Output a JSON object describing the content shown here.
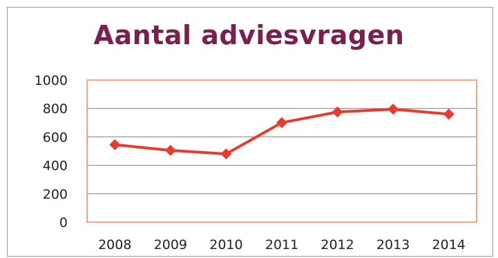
{
  "chart_data": {
    "type": "line",
    "title": "Aantal adviesvragen",
    "xlabel": "",
    "ylabel": "",
    "categories": [
      "2008",
      "2009",
      "2010",
      "2011",
      "2012",
      "2013",
      "2014"
    ],
    "series": [
      {
        "values": [
          545,
          505,
          480,
          700,
          775,
          795,
          760
        ]
      }
    ],
    "ylim": [
      0,
      1000
    ],
    "yticks": [
      0,
      200,
      400,
      600,
      800,
      1000
    ],
    "grid": true,
    "legend": "none",
    "colors": {
      "line": "#e63b2e",
      "title": "#7b1f4e",
      "plot_border": "#f0a78c",
      "grid": "#7f7f7f"
    }
  }
}
